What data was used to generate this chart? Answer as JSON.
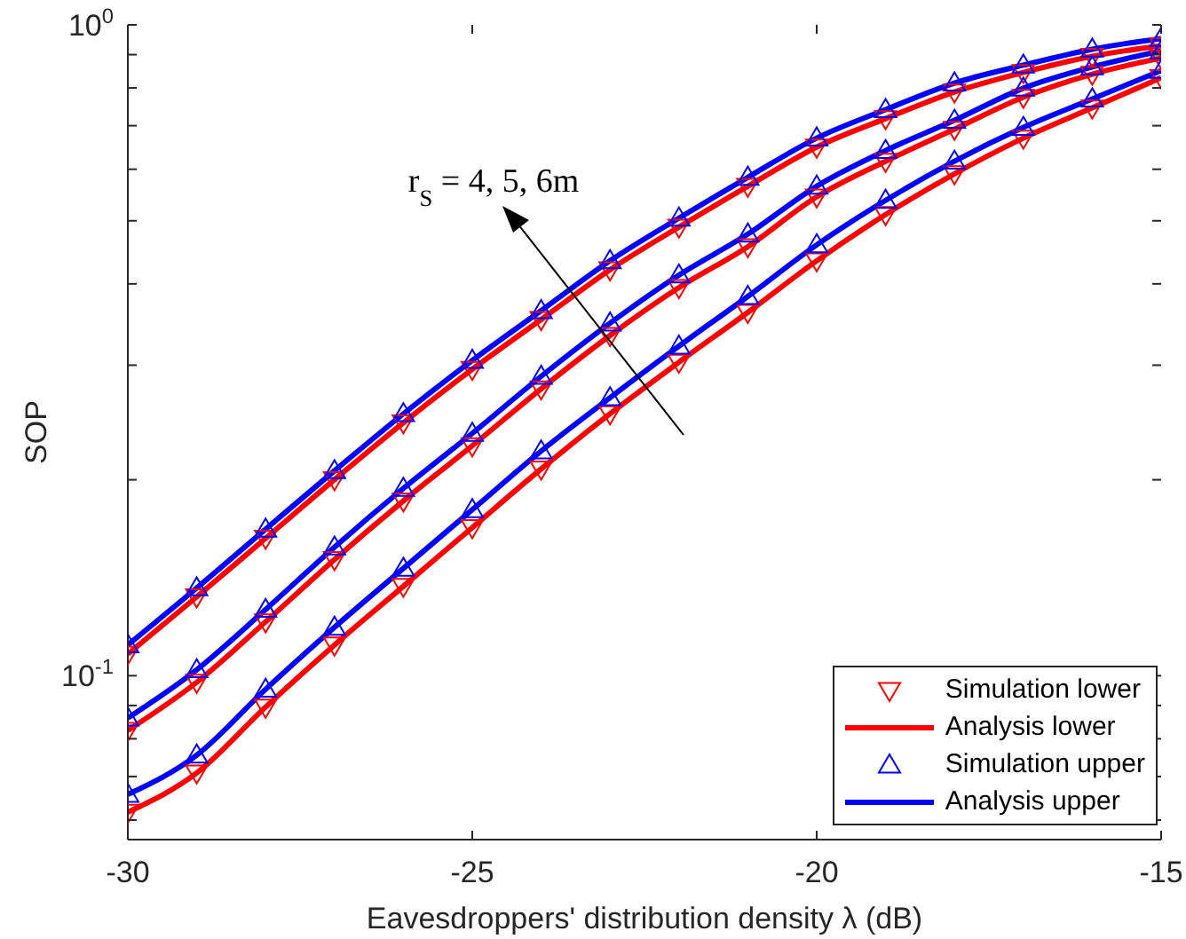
{
  "chart_data": {
    "type": "line",
    "xlabel": "Eavesdroppers' distribution density λ (dB)",
    "ylabel": "SOP",
    "x": [
      -30,
      -29,
      -28,
      -27,
      -26,
      -25,
      -24,
      -23,
      -22,
      -21,
      -20,
      -19,
      -18,
      -17,
      -16,
      -15
    ],
    "xlim": [
      -30,
      -15
    ],
    "xticks": [
      -30,
      -25,
      -20,
      -15
    ],
    "log": "y",
    "ylim": [
      0.056,
      1
    ],
    "yticks": [
      {
        "value": 0.06,
        "label": null
      },
      {
        "value": 0.07,
        "label": null
      },
      {
        "value": 0.08,
        "label": null
      },
      {
        "value": 0.09,
        "label": null
      },
      {
        "value": 0.1,
        "label": "10$^{-1}$"
      },
      {
        "value": 0.2,
        "label": null
      },
      {
        "value": 0.3,
        "label": null
      },
      {
        "value": 0.4,
        "label": null
      },
      {
        "value": 0.5,
        "label": null
      },
      {
        "value": 0.6,
        "label": null
      },
      {
        "value": 0.7,
        "label": null
      },
      {
        "value": 0.8,
        "label": null
      },
      {
        "value": 0.9,
        "label": null
      },
      {
        "value": 1,
        "label": "10$^{0}$"
      }
    ],
    "grid": false,
    "legend": "bottom right",
    "annotations": [
      "r$_{S}$ = 4, 5, 6m"
    ],
    "series": [
      {
        "name": "Simulation lower",
        "type": "scatter",
        "marker": "triangle_down",
        "color": "#ff0000",
        "values": [
          0.108,
          0.1322,
          0.1626,
          0.2001,
          0.2447,
          0.2956,
          0.3526,
          0.4205,
          0.489,
          0.565,
          0.649,
          0.7178,
          0.7888,
          0.8452,
          0.8945,
          0.929
        ]
      },
      {
        "name": "Analysis lower",
        "marker": "none",
        "color": "#ff0000",
        "values": [
          0.108,
          0.1322,
          0.1626,
          0.2001,
          0.2447,
          0.2956,
          0.3526,
          0.4205,
          0.489,
          0.565,
          0.649,
          0.7178,
          0.7888,
          0.8452,
          0.8945,
          0.929
        ]
      },
      {
        "name": "Simulation upper",
        "type": "scatter",
        "marker": "triangle",
        "color": "#0000ff",
        "values": [
          0.1115,
          0.1364,
          0.1679,
          0.2065,
          0.2526,
          0.3051,
          0.3638,
          0.434,
          0.5047,
          0.5831,
          0.6699,
          0.7409,
          0.814,
          0.867,
          0.9174,
          0.9527
        ]
      },
      {
        "name": "Analysis upper",
        "marker": "none",
        "color": "#0000ff",
        "values": [
          0.1115,
          0.1364,
          0.1679,
          0.2065,
          0.2526,
          0.3051,
          0.3638,
          0.434,
          0.5047,
          0.5831,
          0.6699,
          0.7409,
          0.814,
          0.867,
          0.9174,
          0.9527
        ]
      },
      {
        "type": "scatter",
        "marker": "triangle_down",
        "color": "#ff0000",
        "values": [
          0.0824,
          0.0977,
          0.121,
          0.1508,
          0.1856,
          0.2256,
          0.2759,
          0.3332,
          0.3948,
          0.4563,
          0.5442,
          0.6172,
          0.6913,
          0.7741,
          0.84,
          0.8889
        ]
      },
      {
        "marker": "none",
        "color": "#ff0000",
        "values": [
          0.0824,
          0.0977,
          0.121,
          0.1508,
          0.1856,
          0.2256,
          0.2759,
          0.3332,
          0.3948,
          0.4563,
          0.5442,
          0.6172,
          0.6913,
          0.7741,
          0.84,
          0.8889
        ]
      },
      {
        "type": "scatter",
        "marker": "triangle",
        "color": "#0000ff",
        "values": [
          0.0861,
          0.1021,
          0.1264,
          0.1576,
          0.194,
          0.2357,
          0.2884,
          0.3481,
          0.4126,
          0.4769,
          0.565,
          0.641,
          0.7133,
          0.7992,
          0.8616,
          0.9117
        ]
      },
      {
        "marker": "none",
        "color": "#0000ff",
        "values": [
          0.0861,
          0.1021,
          0.1264,
          0.1576,
          0.194,
          0.2357,
          0.2884,
          0.3481,
          0.4126,
          0.4769,
          0.565,
          0.641,
          0.7133,
          0.7992,
          0.8616,
          0.9117
        ]
      },
      {
        "type": "scatter",
        "marker": "triangle_down",
        "color": "#ff0000",
        "values": [
          0.0617,
          0.0709,
          0.0895,
          0.1115,
          0.1372,
          0.1689,
          0.2078,
          0.2526,
          0.3032,
          0.3616,
          0.434,
          0.5111,
          0.5905,
          0.6699,
          0.7455,
          0.8297
        ]
      },
      {
        "marker": "none",
        "color": "#ff0000",
        "values": [
          0.0617,
          0.0709,
          0.0895,
          0.1115,
          0.1372,
          0.1689,
          0.2078,
          0.2526,
          0.3032,
          0.3616,
          0.434,
          0.5111,
          0.5905,
          0.6699,
          0.7455,
          0.8297
        ]
      },
      {
        "type": "scatter",
        "marker": "triangle",
        "color": "#0000ff",
        "values": [
          0.0657,
          0.0755,
          0.0953,
          0.1187,
          0.1462,
          0.1799,
          0.2214,
          0.2673,
          0.3209,
          0.3826,
          0.4592,
          0.5374,
          0.6172,
          0.6956,
          0.7693,
          0.8508
        ]
      },
      {
        "marker": "none",
        "color": "#0000ff",
        "values": [
          0.0657,
          0.0755,
          0.0953,
          0.1187,
          0.1462,
          0.1799,
          0.2214,
          0.2673,
          0.3209,
          0.3826,
          0.4592,
          0.5374,
          0.6172,
          0.6956,
          0.7693,
          0.8508
        ]
      }
    ]
  }
}
